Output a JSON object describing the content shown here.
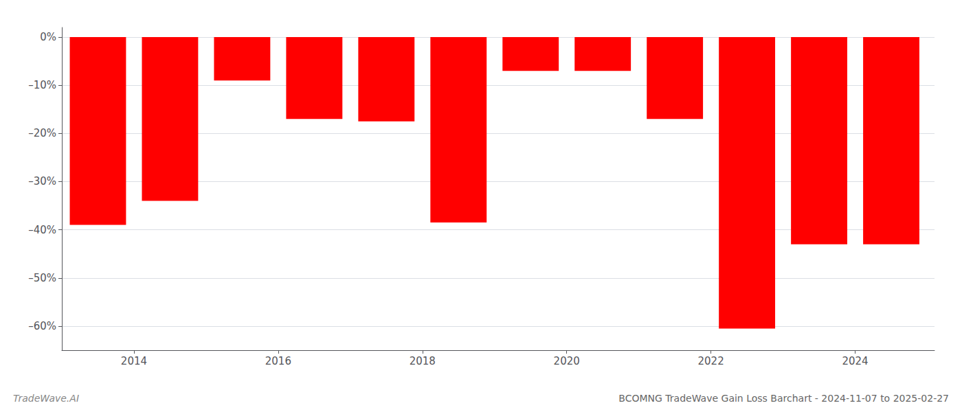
{
  "chart_data": {
    "type": "bar",
    "title": "BCOMNG TradeWave Gain Loss Barchart - 2024-11-07 to 2025-02-27",
    "annotations": [
      "TradeWave.AI"
    ],
    "x": [
      2013.5,
      2014.5,
      2015.5,
      2016.5,
      2017.5,
      2018.5,
      2019.5,
      2020.5,
      2021.5,
      2022.5,
      2023.5,
      2024.5
    ],
    "values": [
      -39.0,
      -34.0,
      -9.0,
      -17.0,
      -17.5,
      -38.5,
      -7.0,
      -7.0,
      -17.0,
      -60.5,
      -43.0,
      -43.0
    ],
    "color": "#ff0000",
    "xlim": [
      2013,
      2025.1
    ],
    "xticks": [
      2014,
      2016,
      2018,
      2020,
      2022,
      2024
    ],
    "ylim": [
      -65,
      2
    ],
    "yticks": [
      {
        "value": 0,
        "label": "0%"
      },
      {
        "value": -10,
        "label": "–10%"
      },
      {
        "value": -20,
        "label": "–20%"
      },
      {
        "value": -30,
        "label": "–30%"
      },
      {
        "value": -40,
        "label": "–40%"
      },
      {
        "value": -50,
        "label": "–50%"
      },
      {
        "value": -60,
        "label": "–60%"
      }
    ],
    "grid": true
  }
}
